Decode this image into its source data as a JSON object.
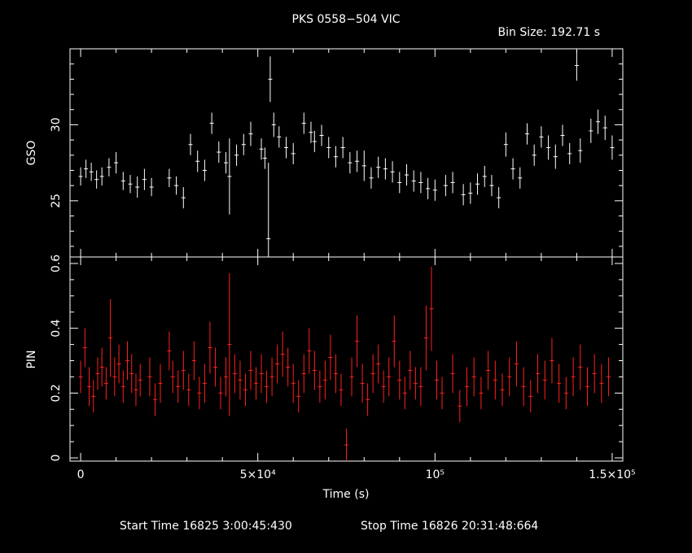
{
  "title": "PKS 0558−504 VIC",
  "bin_size": "Bin Size: 192.71 s",
  "footer": {
    "start": "Start Time 16825  3:00:45:430",
    "stop": "Stop Time 16826 20:31:48:664"
  },
  "colors": {
    "background": "#000000",
    "axes": "#ffffff",
    "gso": "#ffffff",
    "pin": "#ff2020"
  },
  "chart_data": [
    {
      "type": "scatter",
      "name": "GSO panel",
      "ylabel": "GSO",
      "xlim": [
        -3000,
        153000
      ],
      "ylim": [
        21.3,
        35
      ],
      "yticks": [
        25,
        30
      ],
      "ytick_labels": [
        "25",
        "30"
      ],
      "errorbar_color": "#ffffff",
      "x": [
        0,
        1500,
        3000,
        4500,
        6000,
        8000,
        10000,
        12000,
        14000,
        16000,
        18000,
        20000,
        25000,
        27000,
        29000,
        31000,
        33000,
        35000,
        37000,
        39000,
        41000,
        42000,
        44000,
        46000,
        48000,
        51000,
        52000,
        53000,
        53500,
        54500,
        56000,
        58000,
        60000,
        63000,
        65000,
        66000,
        68000,
        70000,
        72000,
        74000,
        76000,
        78000,
        80000,
        82000,
        84000,
        86000,
        88000,
        90000,
        92000,
        94000,
        96000,
        98000,
        100000,
        103000,
        105000,
        108000,
        110000,
        112000,
        114000,
        116000,
        118000,
        120000,
        122000,
        124000,
        126000,
        128000,
        130000,
        132000,
        134000,
        136000,
        138000,
        140000,
        141000,
        144000,
        146000,
        148000,
        150000
      ],
      "y": [
        26.6,
        27.1,
        26.9,
        26.4,
        26.6,
        27.2,
        27.5,
        26.3,
        26.1,
        25.9,
        26.4,
        25.9,
        26.5,
        26.0,
        25.2,
        28.7,
        27.6,
        27.0,
        30.1,
        28.2,
        27.5,
        26.6,
        28.0,
        28.7,
        29.4,
        28.4,
        27.8,
        22.5,
        33.0,
        30.0,
        29.2,
        28.5,
        28.1,
        30.1,
        29.5,
        28.9,
        29.3,
        28.5,
        27.9,
        28.5,
        27.5,
        27.6,
        27.3,
        26.5,
        27.2,
        27.1,
        26.9,
        26.2,
        26.7,
        26.3,
        26.2,
        25.8,
        25.7,
        26.0,
        26.2,
        25.4,
        25.5,
        26.1,
        26.6,
        26.0,
        25.2,
        28.7,
        27.1,
        26.5,
        29.4,
        28.0,
        29.2,
        28.5,
        27.9,
        29.3,
        28.1,
        33.9,
        28.3,
        29.6,
        30.2,
        29.8,
        28.5
      ],
      "yerr": [
        0.6,
        0.6,
        0.6,
        0.6,
        0.6,
        0.6,
        0.7,
        0.6,
        0.6,
        0.7,
        0.7,
        0.6,
        0.6,
        0.6,
        0.7,
        0.7,
        0.7,
        0.7,
        0.7,
        0.7,
        0.7,
        2.5,
        0.7,
        0.7,
        0.8,
        0.7,
        0.7,
        5.0,
        1.5,
        0.8,
        0.7,
        0.7,
        0.7,
        0.7,
        0.7,
        0.7,
        0.7,
        0.7,
        0.7,
        0.7,
        0.7,
        0.7,
        1.0,
        0.7,
        0.7,
        0.7,
        0.7,
        0.7,
        0.7,
        0.7,
        0.7,
        0.7,
        0.7,
        0.7,
        0.7,
        0.7,
        0.7,
        0.7,
        0.7,
        0.7,
        0.7,
        0.8,
        0.7,
        0.7,
        0.7,
        0.7,
        0.7,
        0.8,
        0.8,
        0.7,
        0.7,
        1.0,
        0.8,
        0.8,
        0.8,
        0.8,
        0.8
      ]
    },
    {
      "type": "scatter",
      "name": "PIN panel",
      "xlabel": "Time (s)",
      "ylabel": "PIN",
      "xlim": [
        -3000,
        153000
      ],
      "ylim": [
        -0.01,
        0.62
      ],
      "xticks": [
        0,
        50000,
        100000,
        150000
      ],
      "xtick_labels": [
        "0",
        "5×10⁴",
        "10⁵",
        "1.5×10⁵"
      ],
      "yticks": [
        0,
        0.2,
        0.4,
        0.6
      ],
      "ytick_labels": [
        "0",
        "0.2",
        "0.4",
        "0.6"
      ],
      "errorbar_color": "#ff2020",
      "x": [
        0,
        1200,
        2400,
        3600,
        4800,
        6000,
        7200,
        8400,
        9600,
        10800,
        12000,
        13200,
        14400,
        15600,
        16800,
        19500,
        21000,
        22500,
        25000,
        26000,
        27500,
        29000,
        30500,
        32000,
        33500,
        35000,
        36500,
        38000,
        39500,
        41000,
        42000,
        43500,
        45000,
        46500,
        48000,
        49500,
        51000,
        52500,
        54000,
        55500,
        57000,
        58500,
        60000,
        61500,
        63000,
        64500,
        66000,
        67500,
        69000,
        70500,
        72000,
        73500,
        75000,
        76500,
        78000,
        79500,
        81000,
        82500,
        84000,
        85500,
        87000,
        88500,
        90000,
        91500,
        93000,
        94500,
        96000,
        97500,
        99000,
        100500,
        102000,
        105000,
        107000,
        109000,
        111000,
        113000,
        115000,
        117000,
        119000,
        121000,
        123000,
        125000,
        127000,
        129000,
        131000,
        133000,
        135000,
        137000,
        139000,
        141000,
        143000,
        145000,
        147000,
        149000
      ],
      "y": [
        0.25,
        0.34,
        0.22,
        0.19,
        0.26,
        0.28,
        0.23,
        0.37,
        0.25,
        0.29,
        0.22,
        0.3,
        0.26,
        0.21,
        0.24,
        0.25,
        0.18,
        0.23,
        0.33,
        0.25,
        0.22,
        0.27,
        0.21,
        0.3,
        0.2,
        0.23,
        0.34,
        0.28,
        0.2,
        0.25,
        0.35,
        0.26,
        0.24,
        0.21,
        0.27,
        0.23,
        0.26,
        0.22,
        0.25,
        0.29,
        0.32,
        0.28,
        0.23,
        0.19,
        0.26,
        0.33,
        0.27,
        0.22,
        0.24,
        0.31,
        0.26,
        0.21,
        0.04,
        0.25,
        0.36,
        0.23,
        0.18,
        0.26,
        0.29,
        0.22,
        0.25,
        0.36,
        0.24,
        0.2,
        0.27,
        0.23,
        0.22,
        0.37,
        0.46,
        0.24,
        0.2,
        0.26,
        0.16,
        0.22,
        0.25,
        0.2,
        0.27,
        0.24,
        0.21,
        0.25,
        0.29,
        0.22,
        0.19,
        0.26,
        0.24,
        0.3,
        0.23,
        0.2,
        0.25,
        0.28,
        0.22,
        0.26,
        0.23,
        0.25
      ],
      "yerr": [
        0.05,
        0.06,
        0.06,
        0.05,
        0.05,
        0.06,
        0.05,
        0.12,
        0.06,
        0.06,
        0.05,
        0.06,
        0.06,
        0.05,
        0.05,
        0.06,
        0.05,
        0.06,
        0.06,
        0.05,
        0.05,
        0.06,
        0.05,
        0.06,
        0.05,
        0.06,
        0.08,
        0.06,
        0.05,
        0.06,
        0.22,
        0.06,
        0.06,
        0.05,
        0.06,
        0.05,
        0.06,
        0.05,
        0.06,
        0.06,
        0.07,
        0.06,
        0.06,
        0.05,
        0.06,
        0.07,
        0.06,
        0.05,
        0.06,
        0.07,
        0.06,
        0.05,
        0.05,
        0.06,
        0.08,
        0.06,
        0.05,
        0.06,
        0.06,
        0.05,
        0.06,
        0.08,
        0.06,
        0.05,
        0.06,
        0.05,
        0.06,
        0.1,
        0.13,
        0.06,
        0.05,
        0.06,
        0.05,
        0.06,
        0.06,
        0.05,
        0.06,
        0.06,
        0.05,
        0.06,
        0.07,
        0.06,
        0.05,
        0.06,
        0.06,
        0.07,
        0.06,
        0.05,
        0.06,
        0.07,
        0.06,
        0.06,
        0.06,
        0.06
      ]
    }
  ]
}
